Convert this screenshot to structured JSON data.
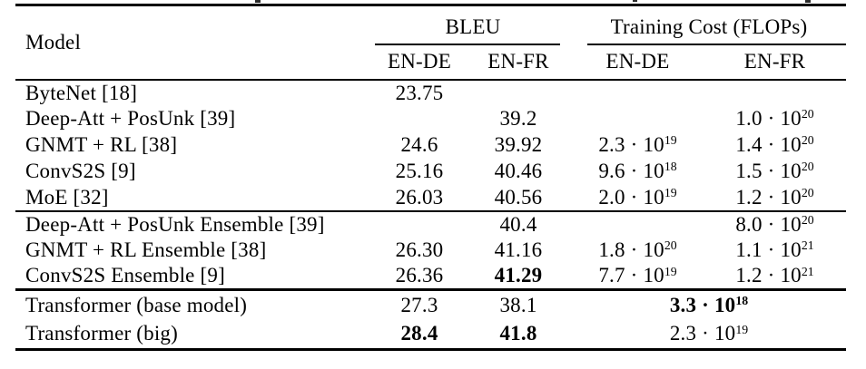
{
  "table": {
    "columns": {
      "model": "Model",
      "group_bleu": "BLEU",
      "group_cost": "Training Cost (FLOPs)",
      "bleu_en_de": "EN-DE",
      "bleu_en_fr": "EN-FR",
      "cost_en_de": "EN-DE",
      "cost_en_fr": "EN-FR"
    },
    "sections": [
      {
        "rows": [
          {
            "model": "ByteNet [18]",
            "bleu_en_de": "23.75",
            "bleu_en_fr": "",
            "cost_en_de": "",
            "cost_en_fr": ""
          },
          {
            "model": "Deep-Att + PosUnk [39]",
            "bleu_en_de": "",
            "bleu_en_fr": "39.2",
            "cost_en_de": "",
            "cost_en_fr": "1.0 · 10^20"
          },
          {
            "model": "GNMT + RL [38]",
            "bleu_en_de": "24.6",
            "bleu_en_fr": "39.92",
            "cost_en_de": "2.3 · 10^19",
            "cost_en_fr": "1.4 · 10^20"
          },
          {
            "model": "ConvS2S [9]",
            "bleu_en_de": "25.16",
            "bleu_en_fr": "40.46",
            "cost_en_de": "9.6 · 10^18",
            "cost_en_fr": "1.5 · 10^20"
          },
          {
            "model": "MoE [32]",
            "bleu_en_de": "26.03",
            "bleu_en_fr": "40.56",
            "cost_en_de": "2.0 · 10^19",
            "cost_en_fr": "1.2 · 10^20"
          }
        ]
      },
      {
        "rows": [
          {
            "model": "Deep-Att + PosUnk Ensemble [39]",
            "bleu_en_de": "",
            "bleu_en_fr": "40.4",
            "cost_en_de": "",
            "cost_en_fr": "8.0 · 10^20"
          },
          {
            "model": "GNMT + RL Ensemble [38]",
            "bleu_en_de": "26.30",
            "bleu_en_fr": "41.16",
            "cost_en_de": "1.8 · 10^20",
            "cost_en_fr": "1.1 · 10^21"
          },
          {
            "model": "ConvS2S Ensemble [9]",
            "bleu_en_de": "26.36",
            "bleu_en_fr": "41.29",
            "cost_en_de": "7.7 · 10^19",
            "cost_en_fr": "1.2 · 10^21"
          }
        ]
      },
      {
        "rows": [
          {
            "model": "Transformer (base model)",
            "bleu_en_de": "27.3",
            "bleu_en_fr": "38.1",
            "cost": "3.3 · 10^18"
          },
          {
            "model": "Transformer (big)",
            "bleu_en_de": "28.4",
            "bleu_en_fr": "41.8",
            "cost": "2.3 · 10^19"
          }
        ]
      }
    ]
  }
}
